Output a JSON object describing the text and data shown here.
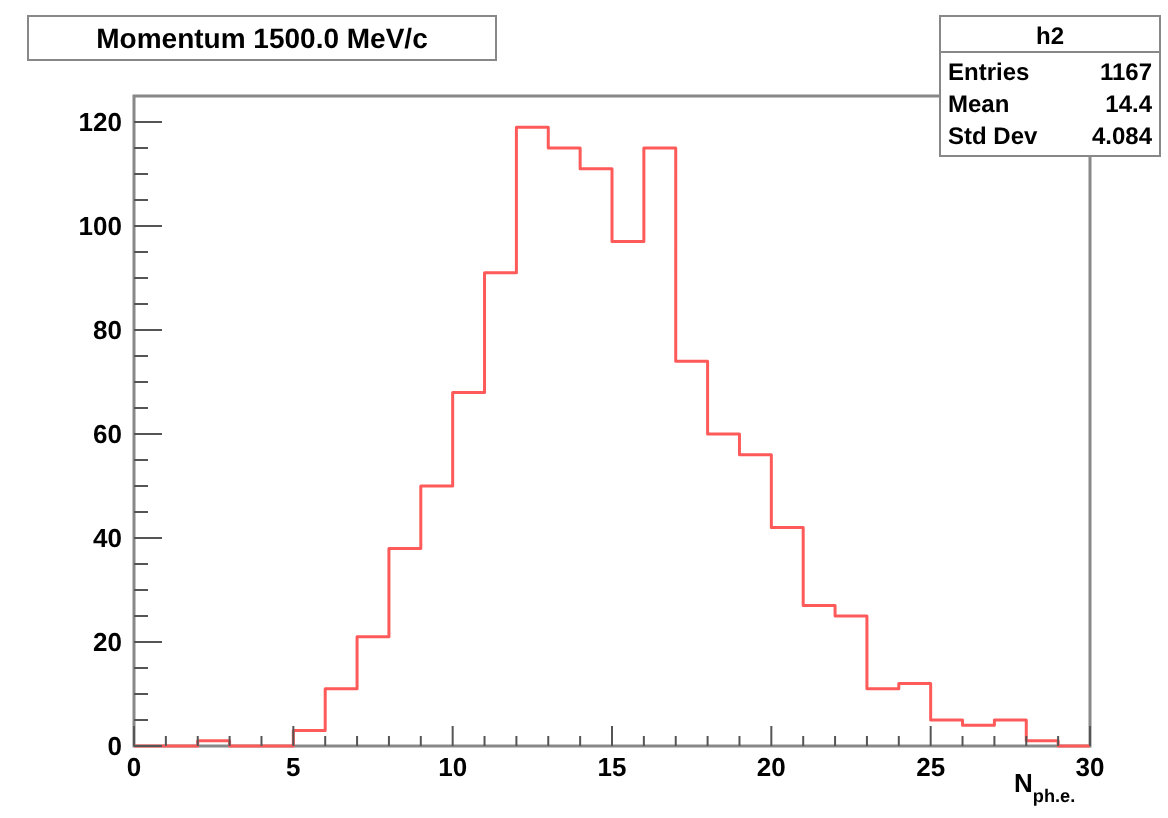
{
  "chart_data": {
    "type": "histogram",
    "title": "Momentum 1500.0 MeV/c",
    "xlabel": "N$_{ph.e.}$",
    "bins": [
      0,
      1,
      2,
      3,
      4,
      5,
      6,
      7,
      8,
      9,
      10,
      11,
      12,
      13,
      14,
      15,
      16,
      17,
      18,
      19,
      20,
      21,
      22,
      23,
      24,
      25,
      26,
      27,
      28,
      29,
      30
    ],
    "values": [
      0,
      0,
      1,
      0,
      0,
      3,
      11,
      21,
      38,
      50,
      68,
      91,
      119,
      115,
      111,
      97,
      115,
      74,
      60,
      56,
      42,
      27,
      25,
      11,
      12,
      5,
      4,
      5,
      1,
      0
    ],
    "color": "#ff5a5a",
    "xlim": [
      0,
      30
    ],
    "ylim": [
      0,
      125
    ],
    "xticks": [
      0,
      {
        "value": 1,
        "label": null
      },
      {
        "value": 2,
        "label": null
      },
      {
        "value": 3,
        "label": null
      },
      {
        "value": 4,
        "label": null
      },
      5,
      {
        "value": 6,
        "label": null
      },
      {
        "value": 7,
        "label": null
      },
      {
        "value": 8,
        "label": null
      },
      {
        "value": 9,
        "label": null
      },
      10,
      {
        "value": 11,
        "label": null
      },
      {
        "value": 12,
        "label": null
      },
      {
        "value": 13,
        "label": null
      },
      {
        "value": 14,
        "label": null
      },
      15,
      {
        "value": 16,
        "label": null
      },
      {
        "value": 17,
        "label": null
      },
      {
        "value": 18,
        "label": null
      },
      {
        "value": 19,
        "label": null
      },
      20,
      {
        "value": 21,
        "label": null
      },
      {
        "value": 22,
        "label": null
      },
      {
        "value": 23,
        "label": null
      },
      {
        "value": 24,
        "label": null
      },
      25,
      {
        "value": 26,
        "label": null
      },
      {
        "value": 27,
        "label": null
      },
      {
        "value": 28,
        "label": null
      },
      {
        "value": 29,
        "label": null
      },
      30
    ],
    "yticks": [
      0,
      {
        "value": 5,
        "label": null
      },
      {
        "value": 10,
        "label": null
      },
      {
        "value": 15,
        "label": null
      },
      20,
      {
        "value": 25,
        "label": null
      },
      {
        "value": 30,
        "label": null
      },
      {
        "value": 35,
        "label": null
      },
      40,
      {
        "value": 45,
        "label": null
      },
      {
        "value": 50,
        "label": null
      },
      {
        "value": 55,
        "label": null
      },
      60,
      {
        "value": 65,
        "label": null
      },
      {
        "value": 70,
        "label": null
      },
      {
        "value": 75,
        "label": null
      },
      80,
      {
        "value": 85,
        "label": null
      },
      {
        "value": 90,
        "label": null
      },
      {
        "value": 95,
        "label": null
      },
      100,
      {
        "value": 105,
        "label": null
      },
      {
        "value": 110,
        "label": null
      },
      {
        "value": 115,
        "label": null
      },
      120
    ],
    "annotations": [
      "h2",
      "Entries",
      "1167",
      "Mean",
      "14.4",
      "Std Dev",
      "4.084"
    ]
  }
}
